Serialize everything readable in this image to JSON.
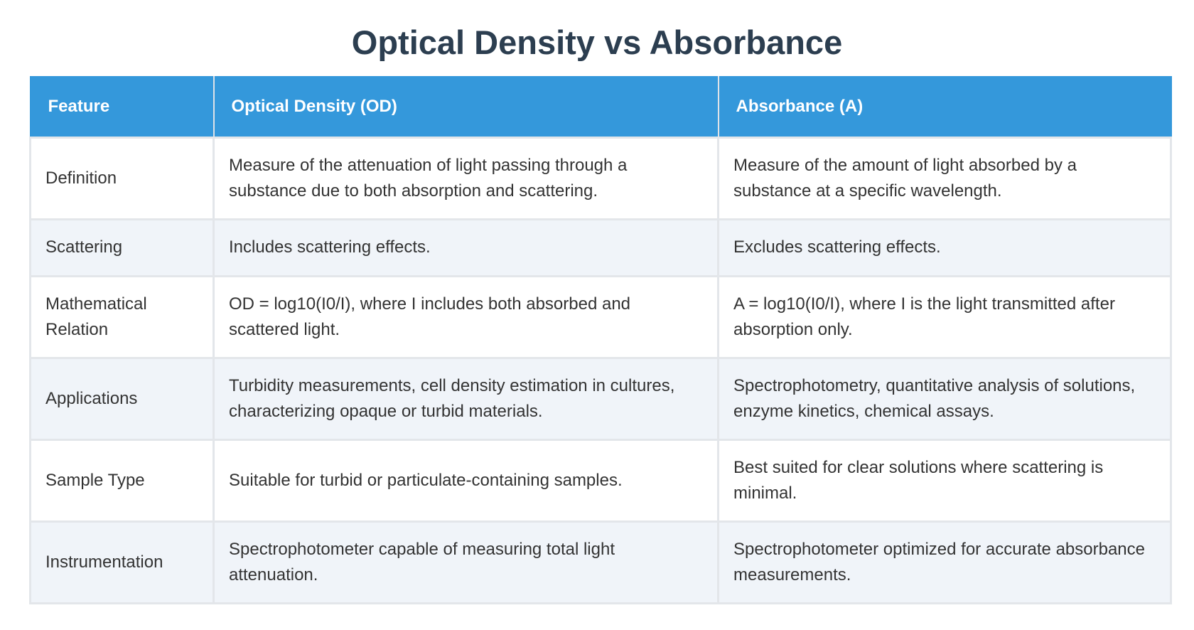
{
  "title": "Optical Density vs Absorbance",
  "table": {
    "headers": [
      "Feature",
      "Optical Density (OD)",
      "Absorbance (A)"
    ],
    "rows": [
      {
        "feature": "Definition",
        "od": "Measure of the attenuation of light passing through a substance due to both absorption and scattering.",
        "a": "Measure of the amount of light absorbed by a substance at a specific wavelength."
      },
      {
        "feature": "Scattering",
        "od": "Includes scattering effects.",
        "a": "Excludes scattering effects."
      },
      {
        "feature": "Mathematical Relation",
        "od": "OD = log10(I0/I), where I includes both absorbed and scattered light.",
        "a": "A = log10(I0/I), where I is the light transmitted after absorption only."
      },
      {
        "feature": "Applications",
        "od": "Turbidity measurements, cell density estimation in cultures, characterizing opaque or turbid materials.",
        "a": "Spectrophotometry, quantitative analysis of solutions, enzyme kinetics, chemical assays."
      },
      {
        "feature": "Sample Type",
        "od": "Suitable for turbid or particulate-containing samples.",
        "a": "Best suited for clear solutions where scattering is minimal."
      },
      {
        "feature": "Instrumentation",
        "od": "Spectrophotometer capable of measuring total light attenuation.",
        "a": "Spectrophotometer optimized for accurate absorbance measurements."
      }
    ]
  },
  "colors": {
    "title": "#2c3e50",
    "header_bg": "#3498db",
    "header_text": "#ffffff",
    "row_alt_bg": "#f0f4f9",
    "body_text": "#333333"
  }
}
